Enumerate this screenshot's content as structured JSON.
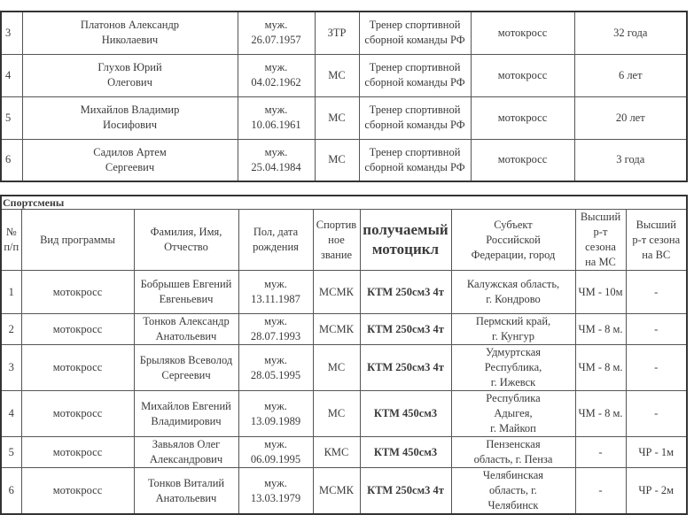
{
  "coaches": [
    {
      "no": "3",
      "name": "Платонов Александр\nНиколаевич",
      "gender_dob": "муж.\n26.07.1957",
      "rank": "ЗТР",
      "position": "Тренер спортивной\nсборной команды РФ",
      "sport": "мотокросс",
      "experience": "32 года"
    },
    {
      "no": "4",
      "name": "Глухов Юрий\nОлегович",
      "gender_dob": "муж.\n04.02.1962",
      "rank": "МС",
      "position": "Тренер спортивной\nсборной команды РФ",
      "sport": "мотокросс",
      "experience": "6 лет"
    },
    {
      "no": "5",
      "name": "Михайлов Владимир\nИосифович",
      "gender_dob": "муж.\n10.06.1961",
      "rank": "МС",
      "position": "Тренер спортивной\nсборной команды РФ",
      "sport": "мотокросс",
      "experience": "20 лет"
    },
    {
      "no": "6",
      "name": "Садилов Артем\nСергеевич",
      "gender_dob": "муж.\n25.04.1984",
      "rank": "МС",
      "position": "Тренер спортивной\nсборной команды РФ",
      "sport": "мотокросс",
      "experience": "3 года"
    }
  ],
  "athletes_section": {
    "title": "Спортсмены",
    "headers": [
      "№\nп/п",
      "Вид программы",
      "Фамилия, Имя,\nОтчество",
      "Пол, дата\nрождения",
      "Спортив\nное\nзвание",
      "получаемый\nмотоцикл",
      "Субъект\nРоссийской\nФедерации, город",
      "Высший\nр-т сезона\nна МС",
      "Высший\nр-т сезона\nна ВС"
    ],
    "rows": [
      {
        "no": "1",
        "program": "мотокросс",
        "name": "Бобрышев Евгений\nЕвгеньевич",
        "gender_dob": "муж.\n13.11.1987",
        "rank": "МСМК",
        "motorcycle": "КТМ 250см3 4т",
        "region": "Калужская область,\nг. Кондрово",
        "ms": "ЧМ - 10м",
        "vs": "-"
      },
      {
        "no": "2",
        "program": "мотокросс",
        "name": "Тонков Александр\nАнатольевич",
        "gender_dob": "муж.\n28.07.1993",
        "rank": "МСМК",
        "motorcycle": "КТМ 250см3 4т",
        "region": "Пермский край,\nг. Кунгур",
        "ms": "ЧМ - 8 м.",
        "vs": "-"
      },
      {
        "no": "3",
        "program": "мотокросс",
        "name": "Брыляков Всеволод\nСергеевич",
        "gender_dob": "муж.\n28.05.1995",
        "rank": "МС",
        "motorcycle": "КТМ 250см3 4т",
        "region": "Удмуртская\nРеспублика,\nг. Ижевск",
        "ms": "ЧМ - 8 м.",
        "vs": "-"
      },
      {
        "no": "4",
        "program": "мотокросс",
        "name": "Михайлов Евгений\nВладимирович",
        "gender_dob": "муж.\n13.09.1989",
        "rank": "МС",
        "motorcycle": "КТМ 450см3",
        "region": "Республика\nАдыгея,\nг. Майкоп",
        "ms": "ЧМ - 8 м.",
        "vs": "-"
      },
      {
        "no": "5",
        "program": "мотокросс",
        "name": "Завьялов Олег\nАлександрович",
        "gender_dob": "муж.\n06.09.1995",
        "rank": "КМС",
        "motorcycle": "КТМ 450см3",
        "region": "Пензенская\nобласть,  г. Пенза",
        "ms": "-",
        "vs": "ЧР - 1м"
      },
      {
        "no": "6",
        "program": "мотокросс",
        "name": "Тонков Виталий\nАнатольевич",
        "gender_dob": "муж.\n13.03.1979",
        "rank": "МСМК",
        "motorcycle": "КТМ 250см3 4т",
        "region": "Челябинская\nобласть, г.\nЧелябинск",
        "ms": "-",
        "vs": "ЧР - 2м"
      }
    ]
  }
}
